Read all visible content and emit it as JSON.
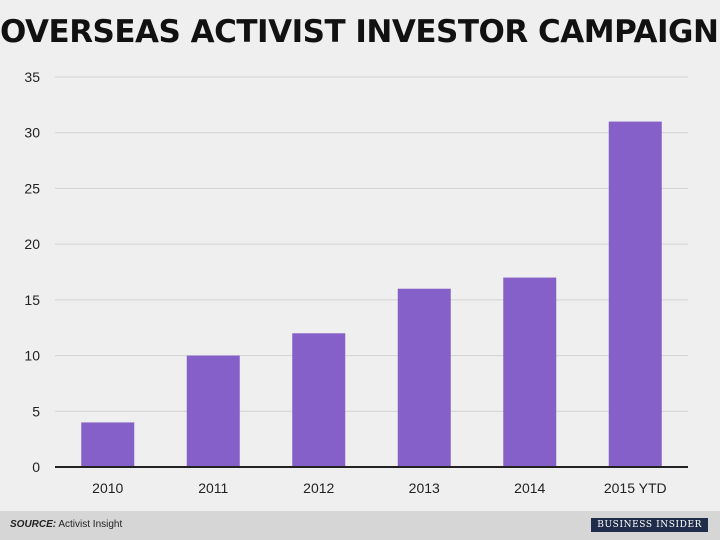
{
  "chart_data": {
    "type": "bar",
    "title": "OVERSEAS ACTIVIST INVESTOR CAMPAIGNS",
    "categories": [
      "2010",
      "2011",
      "2012",
      "2013",
      "2014",
      "2015 YTD"
    ],
    "values": [
      4,
      10,
      12,
      16,
      17,
      31
    ],
    "xlabel": "",
    "ylabel": "",
    "ylim": [
      0,
      35
    ],
    "yticks": [
      0,
      5,
      10,
      15,
      20,
      25,
      30,
      35
    ],
    "grid": true,
    "bar_color": "#8560c8"
  },
  "footer": {
    "source_key": "SOURCE:",
    "source_value": "Activist Insight",
    "brand": "BUSINESS INSIDER"
  }
}
